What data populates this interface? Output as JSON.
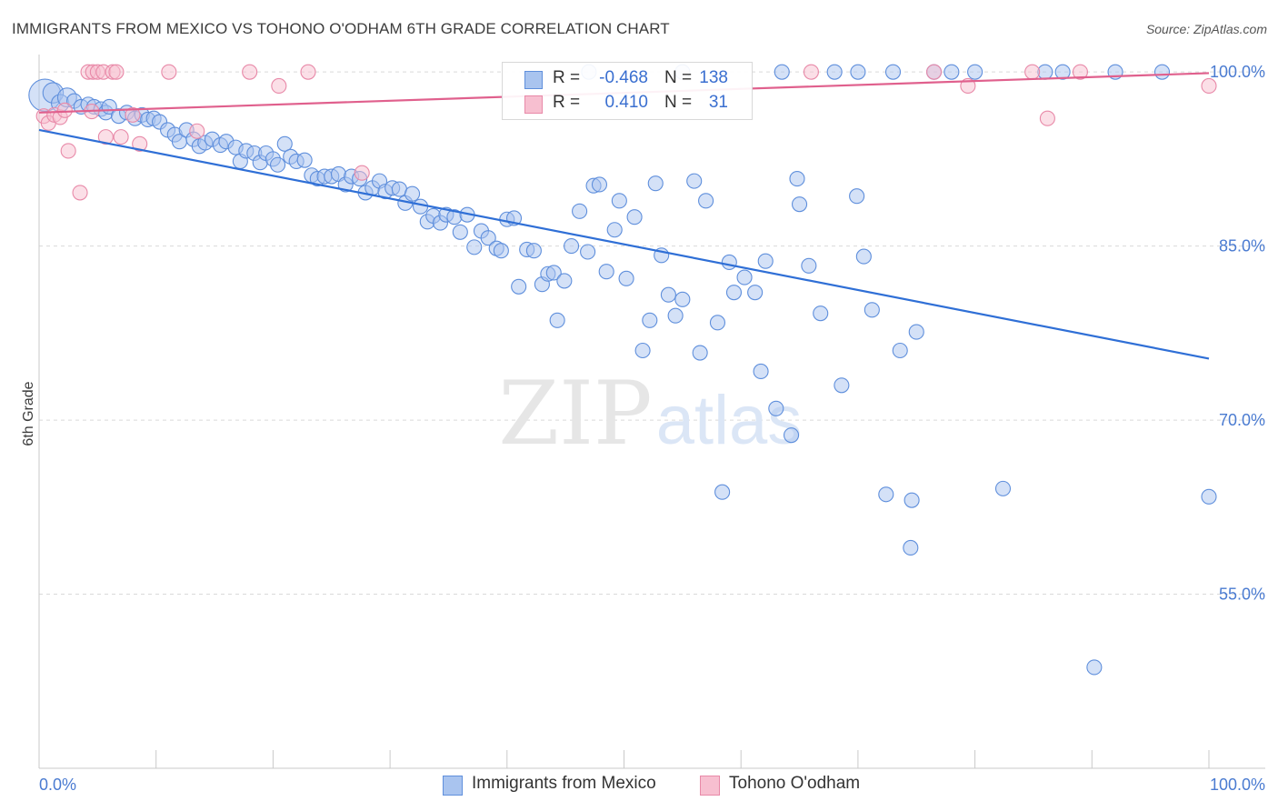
{
  "title": "IMMIGRANTS FROM MEXICO VS TOHONO O'ODHAM 6TH GRADE CORRELATION CHART",
  "source": "Source: ZipAtlas.com",
  "watermark": {
    "zip": "ZIP",
    "atlas": "atlas"
  },
  "legend_top": {
    "rows": [
      {
        "r_label": "R =",
        "r_value": "-0.468",
        "n_label": "N =",
        "n_value": "138",
        "color": "#a9c4ef",
        "border": "#5f8fdc"
      },
      {
        "r_label": "R =",
        "r_value": "0.410",
        "n_label": "N =",
        "n_value": "31",
        "color": "#f7bfd0",
        "border": "#e889a8"
      }
    ]
  },
  "legend_bottom": {
    "items": [
      {
        "label": "Immigrants from Mexico",
        "color": "#a9c4ef",
        "border": "#5f8fdc"
      },
      {
        "label": "Tohono O'odham",
        "color": "#f7bfd0",
        "border": "#e889a8"
      }
    ]
  },
  "chart_data": {
    "type": "scatter",
    "title": "IMMIGRANTS FROM MEXICO VS TOHONO O'ODHAM 6TH GRADE CORRELATION CHART",
    "xlabel": "",
    "ylabel": "6th Grade",
    "xlim": [
      0,
      100
    ],
    "ylim": [
      40,
      101.5
    ],
    "x_tick_labels": [
      "0.0%",
      "100.0%"
    ],
    "y_ticks": [
      55,
      70,
      85,
      100
    ],
    "y_tick_labels": [
      "55.0%",
      "70.0%",
      "85.0%",
      "100.0%"
    ],
    "grid": true,
    "legend": "top-center",
    "series": [
      {
        "name": "Immigrants from Mexico",
        "color": "#a9c4ef",
        "stroke": "#5f8fdc",
        "trend": {
          "x": [
            0,
            100
          ],
          "y": [
            95.0,
            75.3
          ],
          "color": "#2f6fd6"
        },
        "points": [
          {
            "x": 0.5,
            "y": 98.0,
            "s": 2.2
          },
          {
            "x": 1.2,
            "y": 98.2,
            "s": 1.4
          },
          {
            "x": 1.8,
            "y": 97.3,
            "s": 1.2
          },
          {
            "x": 2.4,
            "y": 97.8,
            "s": 1.3
          },
          {
            "x": 3.0,
            "y": 97.5,
            "s": 1
          },
          {
            "x": 3.6,
            "y": 97.0,
            "s": 1
          },
          {
            "x": 4.2,
            "y": 97.2,
            "s": 1
          },
          {
            "x": 4.7,
            "y": 97.0,
            "s": 1
          },
          {
            "x": 5.3,
            "y": 96.8,
            "s": 1
          },
          {
            "x": 5.7,
            "y": 96.5,
            "s": 1
          },
          {
            "x": 6.0,
            "y": 97.0,
            "s": 1
          },
          {
            "x": 6.8,
            "y": 96.2,
            "s": 1
          },
          {
            "x": 7.5,
            "y": 96.5,
            "s": 1
          },
          {
            "x": 8.2,
            "y": 96.0,
            "s": 1
          },
          {
            "x": 8.8,
            "y": 96.3,
            "s": 1
          },
          {
            "x": 9.3,
            "y": 95.9,
            "s": 1
          },
          {
            "x": 9.8,
            "y": 96.0,
            "s": 1
          },
          {
            "x": 10.3,
            "y": 95.7,
            "s": 1
          },
          {
            "x": 11.0,
            "y": 95.0,
            "s": 1
          },
          {
            "x": 11.6,
            "y": 94.6,
            "s": 1
          },
          {
            "x": 12.0,
            "y": 94.0,
            "s": 1
          },
          {
            "x": 12.6,
            "y": 95.0,
            "s": 1
          },
          {
            "x": 13.2,
            "y": 94.2,
            "s": 1
          },
          {
            "x": 13.7,
            "y": 93.6,
            "s": 1
          },
          {
            "x": 14.2,
            "y": 93.9,
            "s": 1
          },
          {
            "x": 14.8,
            "y": 94.2,
            "s": 1
          },
          {
            "x": 15.5,
            "y": 93.7,
            "s": 1
          },
          {
            "x": 16.0,
            "y": 94.0,
            "s": 1
          },
          {
            "x": 16.8,
            "y": 93.5,
            "s": 1
          },
          {
            "x": 17.2,
            "y": 92.3,
            "s": 1
          },
          {
            "x": 17.7,
            "y": 93.2,
            "s": 1
          },
          {
            "x": 18.4,
            "y": 93.0,
            "s": 1
          },
          {
            "x": 18.9,
            "y": 92.2,
            "s": 1
          },
          {
            "x": 19.4,
            "y": 93.0,
            "s": 1
          },
          {
            "x": 20.0,
            "y": 92.5,
            "s": 1
          },
          {
            "x": 20.4,
            "y": 92.0,
            "s": 1
          },
          {
            "x": 21.0,
            "y": 93.8,
            "s": 1
          },
          {
            "x": 21.5,
            "y": 92.7,
            "s": 1
          },
          {
            "x": 22.0,
            "y": 92.3,
            "s": 1
          },
          {
            "x": 22.7,
            "y": 92.4,
            "s": 1
          },
          {
            "x": 23.3,
            "y": 91.1,
            "s": 1
          },
          {
            "x": 23.8,
            "y": 90.8,
            "s": 1
          },
          {
            "x": 24.4,
            "y": 91.0,
            "s": 1
          },
          {
            "x": 25.0,
            "y": 91.0,
            "s": 1
          },
          {
            "x": 25.6,
            "y": 91.2,
            "s": 1
          },
          {
            "x": 26.2,
            "y": 90.3,
            "s": 1
          },
          {
            "x": 26.7,
            "y": 91.0,
            "s": 1
          },
          {
            "x": 27.4,
            "y": 90.8,
            "s": 1
          },
          {
            "x": 27.9,
            "y": 89.6,
            "s": 1
          },
          {
            "x": 28.5,
            "y": 90.0,
            "s": 1
          },
          {
            "x": 29.1,
            "y": 90.6,
            "s": 1
          },
          {
            "x": 29.6,
            "y": 89.7,
            "s": 1
          },
          {
            "x": 30.2,
            "y": 90.0,
            "s": 1
          },
          {
            "x": 30.8,
            "y": 89.9,
            "s": 1
          },
          {
            "x": 31.3,
            "y": 88.7,
            "s": 1
          },
          {
            "x": 31.9,
            "y": 89.5,
            "s": 1
          },
          {
            "x": 32.6,
            "y": 88.4,
            "s": 1
          },
          {
            "x": 33.2,
            "y": 87.1,
            "s": 1
          },
          {
            "x": 33.7,
            "y": 87.6,
            "s": 1
          },
          {
            "x": 34.3,
            "y": 87.0,
            "s": 1
          },
          {
            "x": 34.8,
            "y": 87.7,
            "s": 1
          },
          {
            "x": 35.5,
            "y": 87.5,
            "s": 1
          },
          {
            "x": 36.0,
            "y": 86.2,
            "s": 1
          },
          {
            "x": 36.6,
            "y": 87.7,
            "s": 1
          },
          {
            "x": 37.2,
            "y": 84.9,
            "s": 1
          },
          {
            "x": 37.8,
            "y": 86.3,
            "s": 1
          },
          {
            "x": 38.4,
            "y": 85.7,
            "s": 1
          },
          {
            "x": 39.1,
            "y": 84.8,
            "s": 1
          },
          {
            "x": 39.5,
            "y": 84.6,
            "s": 1
          },
          {
            "x": 40.0,
            "y": 87.3,
            "s": 1
          },
          {
            "x": 40.6,
            "y": 87.4,
            "s": 1
          },
          {
            "x": 41.0,
            "y": 81.5,
            "s": 1
          },
          {
            "x": 41.7,
            "y": 84.7,
            "s": 1
          },
          {
            "x": 42.3,
            "y": 84.6,
            "s": 1
          },
          {
            "x": 43.0,
            "y": 81.7,
            "s": 1
          },
          {
            "x": 43.5,
            "y": 82.6,
            "s": 1
          },
          {
            "x": 44.0,
            "y": 82.7,
            "s": 1
          },
          {
            "x": 44.3,
            "y": 78.6,
            "s": 1
          },
          {
            "x": 44.9,
            "y": 82.0,
            "s": 1
          },
          {
            "x": 45.5,
            "y": 85.0,
            "s": 1
          },
          {
            "x": 46.2,
            "y": 88.0,
            "s": 1
          },
          {
            "x": 46.9,
            "y": 84.5,
            "s": 1
          },
          {
            "x": 47.4,
            "y": 90.2,
            "s": 1
          },
          {
            "x": 47.9,
            "y": 90.3,
            "s": 1
          },
          {
            "x": 48.5,
            "y": 82.8,
            "s": 1
          },
          {
            "x": 49.2,
            "y": 86.4,
            "s": 1
          },
          {
            "x": 49.6,
            "y": 88.9,
            "s": 1
          },
          {
            "x": 50.2,
            "y": 82.2,
            "s": 1
          },
          {
            "x": 50.9,
            "y": 87.5,
            "s": 1
          },
          {
            "x": 51.6,
            "y": 76.0,
            "s": 1
          },
          {
            "x": 52.2,
            "y": 78.6,
            "s": 1
          },
          {
            "x": 52.7,
            "y": 90.4,
            "s": 1
          },
          {
            "x": 53.2,
            "y": 84.2,
            "s": 1
          },
          {
            "x": 53.8,
            "y": 80.8,
            "s": 1
          },
          {
            "x": 54.4,
            "y": 79.0,
            "s": 1
          },
          {
            "x": 55.0,
            "y": 80.4,
            "s": 1
          },
          {
            "x": 56.0,
            "y": 90.6,
            "s": 1
          },
          {
            "x": 56.5,
            "y": 75.8,
            "s": 1
          },
          {
            "x": 57.0,
            "y": 88.9,
            "s": 1
          },
          {
            "x": 58.0,
            "y": 78.4,
            "s": 1
          },
          {
            "x": 58.4,
            "y": 63.8,
            "s": 1
          },
          {
            "x": 59.0,
            "y": 83.6,
            "s": 1
          },
          {
            "x": 59.4,
            "y": 81.0,
            "s": 1
          },
          {
            "x": 60.3,
            "y": 82.3,
            "s": 1
          },
          {
            "x": 61.2,
            "y": 81.0,
            "s": 1
          },
          {
            "x": 61.7,
            "y": 74.2,
            "s": 1
          },
          {
            "x": 62.1,
            "y": 83.7,
            "s": 1
          },
          {
            "x": 63.0,
            "y": 71.0,
            "s": 1
          },
          {
            "x": 64.3,
            "y": 68.7,
            "s": 1
          },
          {
            "x": 64.8,
            "y": 90.8,
            "s": 1
          },
          {
            "x": 65.0,
            "y": 88.6,
            "s": 1
          },
          {
            "x": 65.8,
            "y": 83.3,
            "s": 1
          },
          {
            "x": 66.8,
            "y": 79.2,
            "s": 1
          },
          {
            "x": 68.6,
            "y": 73.0,
            "s": 1
          },
          {
            "x": 69.9,
            "y": 89.3,
            "s": 1
          },
          {
            "x": 70.5,
            "y": 84.1,
            "s": 1
          },
          {
            "x": 71.2,
            "y": 79.5,
            "s": 1
          },
          {
            "x": 72.4,
            "y": 63.6,
            "s": 1
          },
          {
            "x": 73.6,
            "y": 76.0,
            "s": 1
          },
          {
            "x": 74.5,
            "y": 59.0,
            "s": 1
          },
          {
            "x": 74.6,
            "y": 63.1,
            "s": 1
          },
          {
            "x": 75.0,
            "y": 77.6,
            "s": 1
          },
          {
            "x": 76.5,
            "y": 100.0,
            "s": 1
          },
          {
            "x": 78.0,
            "y": 100.0,
            "s": 1
          },
          {
            "x": 80.0,
            "y": 100.0,
            "s": 1
          },
          {
            "x": 82.4,
            "y": 64.1,
            "s": 1
          },
          {
            "x": 86.0,
            "y": 100.0,
            "s": 1
          },
          {
            "x": 87.5,
            "y": 100.0,
            "s": 1
          },
          {
            "x": 90.2,
            "y": 48.7,
            "s": 1
          },
          {
            "x": 92.0,
            "y": 100.0,
            "s": 1
          },
          {
            "x": 96.0,
            "y": 100.0,
            "s": 1
          },
          {
            "x": 100.0,
            "y": 63.4,
            "s": 1
          },
          {
            "x": 47.0,
            "y": 100.0,
            "s": 1
          },
          {
            "x": 55.0,
            "y": 100.0,
            "s": 1
          },
          {
            "x": 63.5,
            "y": 100.0,
            "s": 1
          },
          {
            "x": 68.0,
            "y": 100.0,
            "s": 1
          },
          {
            "x": 70.0,
            "y": 100.0,
            "s": 1
          },
          {
            "x": 73.0,
            "y": 100.0,
            "s": 1
          }
        ]
      },
      {
        "name": "Tohono O'odham",
        "color": "#f7bfd0",
        "stroke": "#e889a8",
        "trend": {
          "x": [
            0,
            100
          ],
          "y": [
            96.5,
            99.9
          ],
          "color": "#e0608d"
        },
        "points": [
          {
            "x": 0.4,
            "y": 96.2,
            "s": 1
          },
          {
            "x": 0.8,
            "y": 95.6,
            "s": 1
          },
          {
            "x": 1.3,
            "y": 96.3,
            "s": 1
          },
          {
            "x": 1.8,
            "y": 96.1,
            "s": 1
          },
          {
            "x": 2.2,
            "y": 96.7,
            "s": 1
          },
          {
            "x": 2.5,
            "y": 93.2,
            "s": 1
          },
          {
            "x": 3.5,
            "y": 89.6,
            "s": 1
          },
          {
            "x": 4.2,
            "y": 100.0,
            "s": 1
          },
          {
            "x": 4.6,
            "y": 100.0,
            "s": 1
          },
          {
            "x": 5.0,
            "y": 100.0,
            "s": 1
          },
          {
            "x": 5.5,
            "y": 100.0,
            "s": 1
          },
          {
            "x": 6.3,
            "y": 100.0,
            "s": 1
          },
          {
            "x": 6.6,
            "y": 100.0,
            "s": 1
          },
          {
            "x": 4.5,
            "y": 96.6,
            "s": 1
          },
          {
            "x": 5.7,
            "y": 94.4,
            "s": 1
          },
          {
            "x": 7.0,
            "y": 94.4,
            "s": 1
          },
          {
            "x": 8.0,
            "y": 96.3,
            "s": 1
          },
          {
            "x": 8.6,
            "y": 93.8,
            "s": 1
          },
          {
            "x": 11.1,
            "y": 100.0,
            "s": 1
          },
          {
            "x": 13.5,
            "y": 94.9,
            "s": 1
          },
          {
            "x": 18.0,
            "y": 100.0,
            "s": 1
          },
          {
            "x": 20.5,
            "y": 98.8,
            "s": 1
          },
          {
            "x": 23.0,
            "y": 100.0,
            "s": 1
          },
          {
            "x": 27.6,
            "y": 91.3,
            "s": 1
          },
          {
            "x": 66.0,
            "y": 100.0,
            "s": 1
          },
          {
            "x": 76.5,
            "y": 100.0,
            "s": 1
          },
          {
            "x": 79.4,
            "y": 98.8,
            "s": 1
          },
          {
            "x": 84.9,
            "y": 100.0,
            "s": 1
          },
          {
            "x": 86.2,
            "y": 96.0,
            "s": 1
          },
          {
            "x": 89.0,
            "y": 100.0,
            "s": 1
          },
          {
            "x": 100.0,
            "y": 98.8,
            "s": 1
          }
        ]
      }
    ]
  }
}
